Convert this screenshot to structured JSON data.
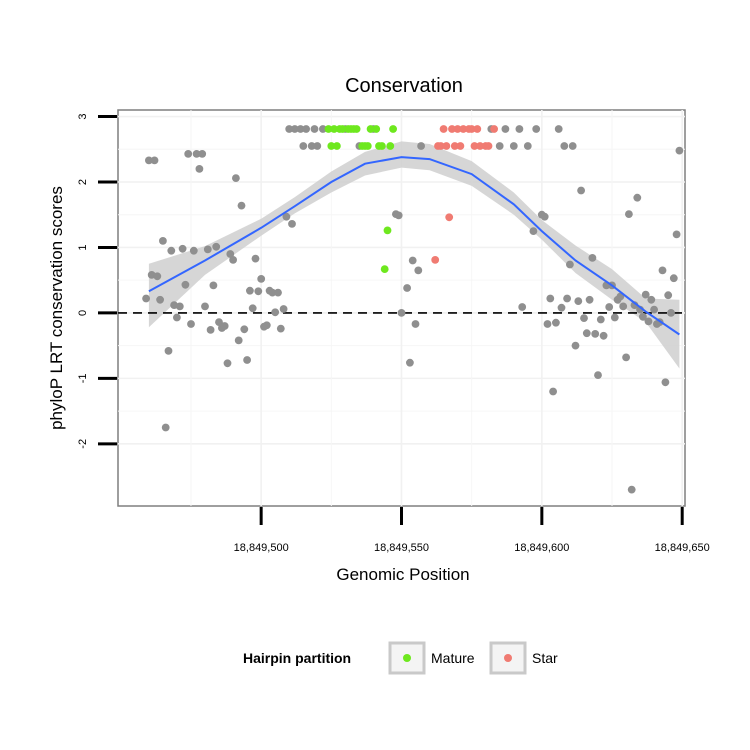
{
  "chart_data": {
    "type": "scatter",
    "title": "Conservation",
    "xlabel": "Genomic Position",
    "ylabel": "phyloP LRT conservation scores",
    "xlim": [
      18849449,
      18849651
    ],
    "ylim": [
      -2.95,
      3.1
    ],
    "x_ticks": [
      18849500,
      18849550,
      18849600,
      18849650
    ],
    "x_tick_labels": [
      "18,849,500",
      "18,849,550",
      "18,849,600",
      "18,849,650"
    ],
    "y_ticks": [
      -2,
      -1,
      0,
      1,
      2,
      3
    ],
    "y_tick_labels": [
      "-2",
      "-1",
      "0",
      "1",
      "2",
      "3"
    ],
    "reference_line": {
      "y": 0,
      "style": "dashed"
    },
    "legend": {
      "title": "Hairpin partition",
      "position": "bottom",
      "entries": [
        {
          "label": "Mature",
          "color": "#6ee81e"
        },
        {
          "label": "Star",
          "color": "#f07b72"
        }
      ]
    },
    "colors": {
      "other": "#8f8f8f",
      "mature": "#6ee81e",
      "star": "#f07b72",
      "smooth_line": "#3366ff",
      "confidence_band": "#cfcfcf"
    },
    "series": [
      {
        "name": "Other",
        "points": [
          [
            18849459,
            0.22
          ],
          [
            18849460,
            2.33
          ],
          [
            18849461,
            0.58
          ],
          [
            18849462,
            2.33
          ],
          [
            18849463,
            0.56
          ],
          [
            18849464,
            0.2
          ],
          [
            18849465,
            1.1
          ],
          [
            18849466,
            -1.75
          ],
          [
            18849467,
            -0.58
          ],
          [
            18849468,
            0.95
          ],
          [
            18849469,
            0.12
          ],
          [
            18849470,
            -0.07
          ],
          [
            18849471,
            0.1
          ],
          [
            18849472,
            0.98
          ],
          [
            18849473,
            0.43
          ],
          [
            18849474,
            2.43
          ],
          [
            18849475,
            -0.17
          ],
          [
            18849476,
            0.95
          ],
          [
            18849477,
            2.43
          ],
          [
            18849478,
            2.2
          ],
          [
            18849479,
            2.43
          ],
          [
            18849480,
            0.1
          ],
          [
            18849481,
            0.97
          ],
          [
            18849482,
            -0.26
          ],
          [
            18849483,
            0.42
          ],
          [
            18849484,
            1.01
          ],
          [
            18849485,
            -0.14
          ],
          [
            18849486,
            -0.23
          ],
          [
            18849487,
            -0.2
          ],
          [
            18849488,
            -0.77
          ],
          [
            18849489,
            0.9
          ],
          [
            18849490,
            0.81
          ],
          [
            18849491,
            2.06
          ],
          [
            18849492,
            -0.42
          ],
          [
            18849493,
            1.64
          ],
          [
            18849494,
            -0.25
          ],
          [
            18849495,
            -0.72
          ],
          [
            18849496,
            0.34
          ],
          [
            18849497,
            0.07
          ],
          [
            18849498,
            0.83
          ],
          [
            18849499,
            0.33
          ],
          [
            18849500,
            0.52
          ],
          [
            18849501,
            -0.21
          ],
          [
            18849502,
            -0.19
          ],
          [
            18849503,
            0.34
          ],
          [
            18849504,
            0.31
          ],
          [
            18849505,
            0.01
          ],
          [
            18849506,
            0.31
          ],
          [
            18849507,
            -0.24
          ],
          [
            18849508,
            0.06
          ],
          [
            18849509,
            1.47
          ],
          [
            18849510,
            2.81
          ],
          [
            18849511,
            1.36
          ],
          [
            18849512,
            2.81
          ],
          [
            18849514,
            2.81
          ],
          [
            18849515,
            2.55
          ],
          [
            18849516,
            2.81
          ],
          [
            18849518,
            2.55
          ],
          [
            18849519,
            2.81
          ],
          [
            18849520,
            2.55
          ],
          [
            18849522,
            2.81
          ],
          [
            18849530,
            2.81
          ],
          [
            18849535,
            2.55
          ],
          [
            18849540,
            2.81
          ],
          [
            18849548,
            1.51
          ],
          [
            18849549,
            1.49
          ],
          [
            18849550,
            0.0
          ],
          [
            18849552,
            0.38
          ],
          [
            18849553,
            -0.76
          ],
          [
            18849554,
            0.8
          ],
          [
            18849555,
            -0.17
          ],
          [
            18849556,
            0.65
          ],
          [
            18849557,
            2.55
          ],
          [
            18849582,
            2.81
          ],
          [
            18849585,
            2.55
          ],
          [
            18849587,
            2.81
          ],
          [
            18849590,
            2.55
          ],
          [
            18849592,
            2.81
          ],
          [
            18849593,
            0.09
          ],
          [
            18849595,
            2.55
          ],
          [
            18849597,
            1.25
          ],
          [
            18849598,
            2.81
          ],
          [
            18849600,
            1.5
          ],
          [
            18849601,
            1.47
          ],
          [
            18849602,
            -0.17
          ],
          [
            18849603,
            0.22
          ],
          [
            18849604,
            -1.2
          ],
          [
            18849605,
            -0.15
          ],
          [
            18849606,
            2.81
          ],
          [
            18849607,
            0.08
          ],
          [
            18849608,
            2.55
          ],
          [
            18849609,
            0.22
          ],
          [
            18849610,
            0.74
          ],
          [
            18849611,
            2.55
          ],
          [
            18849612,
            -0.5
          ],
          [
            18849613,
            0.18
          ],
          [
            18849614,
            1.87
          ],
          [
            18849615,
            -0.08
          ],
          [
            18849616,
            -0.31
          ],
          [
            18849617,
            0.2
          ],
          [
            18849618,
            0.84
          ],
          [
            18849619,
            -0.32
          ],
          [
            18849620,
            -0.95
          ],
          [
            18849621,
            -0.1
          ],
          [
            18849622,
            -0.35
          ],
          [
            18849623,
            0.42
          ],
          [
            18849624,
            0.09
          ],
          [
            18849625,
            0.42
          ],
          [
            18849626,
            -0.07
          ],
          [
            18849627,
            0.2
          ],
          [
            18849628,
            0.25
          ],
          [
            18849629,
            0.1
          ],
          [
            18849630,
            -0.68
          ],
          [
            18849631,
            1.51
          ],
          [
            18849632,
            -2.7
          ],
          [
            18849633,
            0.12
          ],
          [
            18849634,
            1.76
          ],
          [
            18849635,
            0.05
          ],
          [
            18849636,
            -0.06
          ],
          [
            18849637,
            0.28
          ],
          [
            18849638,
            -0.13
          ],
          [
            18849639,
            0.2
          ],
          [
            18849640,
            0.05
          ],
          [
            18849641,
            -0.17
          ],
          [
            18849642,
            -0.14
          ],
          [
            18849643,
            0.65
          ],
          [
            18849644,
            -1.06
          ],
          [
            18849645,
            0.27
          ],
          [
            18849646,
            0.0
          ],
          [
            18849647,
            0.53
          ],
          [
            18849648,
            1.2
          ],
          [
            18849649,
            2.48
          ]
        ]
      },
      {
        "name": "Mature",
        "points": [
          [
            18849524,
            2.81
          ],
          [
            18849525,
            2.55
          ],
          [
            18849526,
            2.81
          ],
          [
            18849527,
            2.55
          ],
          [
            18849528,
            2.81
          ],
          [
            18849529,
            2.81
          ],
          [
            18849531,
            2.81
          ],
          [
            18849532,
            2.81
          ],
          [
            18849533,
            2.81
          ],
          [
            18849534,
            2.81
          ],
          [
            18849536,
            2.55
          ],
          [
            18849537,
            2.55
          ],
          [
            18849538,
            2.55
          ],
          [
            18849539,
            2.81
          ],
          [
            18849541,
            2.81
          ],
          [
            18849542,
            2.55
          ],
          [
            18849543,
            2.55
          ],
          [
            18849544,
            0.67
          ],
          [
            18849545,
            1.26
          ],
          [
            18849546,
            2.55
          ],
          [
            18849547,
            2.81
          ]
        ]
      },
      {
        "name": "Star",
        "points": [
          [
            18849562,
            0.81
          ],
          [
            18849563,
            2.55
          ],
          [
            18849564,
            2.55
          ],
          [
            18849565,
            2.81
          ],
          [
            18849566,
            2.55
          ],
          [
            18849567,
            1.46
          ],
          [
            18849568,
            2.81
          ],
          [
            18849569,
            2.55
          ],
          [
            18849570,
            2.81
          ],
          [
            18849571,
            2.55
          ],
          [
            18849572,
            2.81
          ],
          [
            18849574,
            2.81
          ],
          [
            18849575,
            2.81
          ],
          [
            18849576,
            2.55
          ],
          [
            18849577,
            2.81
          ],
          [
            18849578,
            2.55
          ],
          [
            18849580,
            2.55
          ],
          [
            18849581,
            2.55
          ],
          [
            18849583,
            2.81
          ]
        ]
      }
    ],
    "smooth_line": {
      "x": [
        18849460,
        18849480,
        18849500,
        18849512,
        18849525,
        18849537,
        18849550,
        18849560,
        18849575,
        18849590,
        18849600,
        18849612,
        18849625,
        18849637,
        18849649
      ],
      "y": [
        0.33,
        0.8,
        1.3,
        1.63,
        2.0,
        2.28,
        2.38,
        2.35,
        2.12,
        1.66,
        1.25,
        0.8,
        0.42,
        0.02,
        -0.33
      ]
    },
    "confidence_band": {
      "x": [
        18849460,
        18849480,
        18849500,
        18849512,
        18849525,
        18849537,
        18849550,
        18849560,
        18849575,
        18849590,
        18849600,
        18849612,
        18849625,
        18849637,
        18849649
      ],
      "lower": [
        -0.22,
        0.58,
        1.18,
        1.52,
        1.84,
        2.1,
        2.22,
        2.18,
        1.94,
        1.5,
        1.12,
        0.61,
        0.2,
        -0.14,
        -0.85
      ],
      "upper": [
        0.75,
        1.02,
        1.44,
        1.77,
        2.16,
        2.46,
        2.62,
        2.58,
        2.32,
        1.84,
        1.42,
        1.03,
        0.67,
        0.22,
        0.2
      ]
    }
  }
}
